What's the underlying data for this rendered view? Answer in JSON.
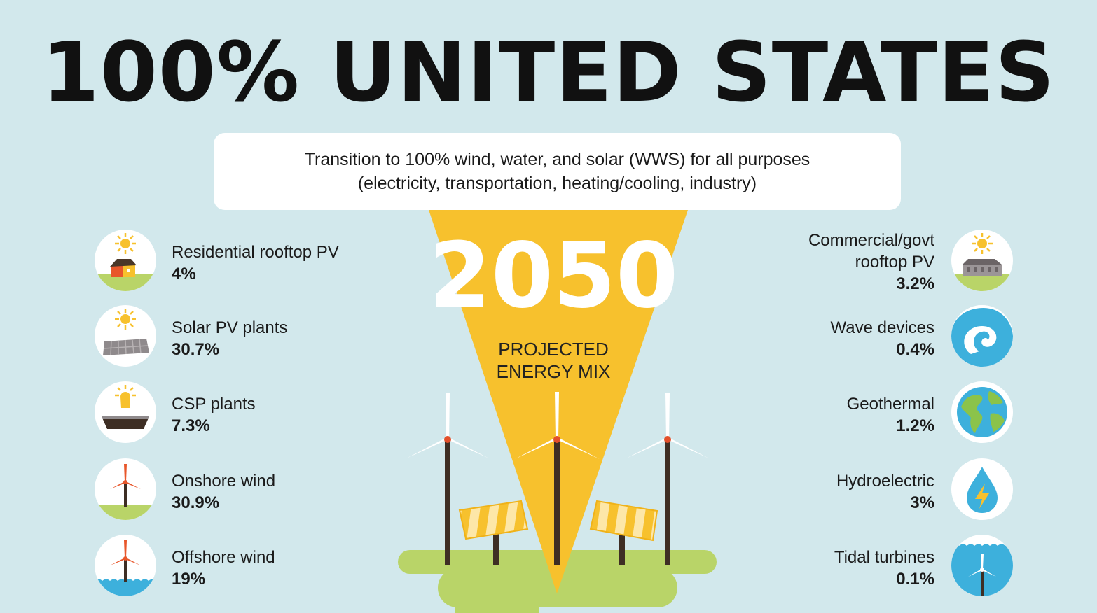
{
  "title": "100% UNITED STATES",
  "banner": {
    "line1": "Transition to 100% wind, water, and solar (WWS) for all purposes",
    "line2": "(electricity, transportation, heating/cooling, industry)"
  },
  "center": {
    "year": "2050",
    "label_line1": "PROJECTED",
    "label_line2": "ENERGY MIX"
  },
  "colors": {
    "background": "#d2e8ec",
    "funnel": "#f7c12d",
    "grass": "#b9d468",
    "water": "#3db0dc",
    "turbine_hub": "#e3502b",
    "tower": "#3e2e24"
  },
  "left_items": [
    {
      "label": "Residential rooftop PV",
      "value": "4%",
      "icon": "sun-house-icon"
    },
    {
      "label": "Solar PV plants",
      "value": "30.7%",
      "icon": "sun-solar-panel-icon"
    },
    {
      "label": "CSP plants",
      "value": "7.3%",
      "icon": "csp-mirror-icon"
    },
    {
      "label": "Onshore wind",
      "value": "30.9%",
      "icon": "onshore-turbine-icon"
    },
    {
      "label": "Offshore wind",
      "value": "19%",
      "icon": "offshore-turbine-icon"
    }
  ],
  "right_items": [
    {
      "label": "Commercial/govt",
      "label2": "rooftop PV",
      "value": "3.2%",
      "icon": "sun-building-icon"
    },
    {
      "label": "Wave devices",
      "value": "0.4%",
      "icon": "wave-icon"
    },
    {
      "label": "Geothermal",
      "value": "1.2%",
      "icon": "globe-icon"
    },
    {
      "label": "Hydroelectric",
      "value": "3%",
      "icon": "water-drop-bolt-icon"
    },
    {
      "label": "Tidal turbines",
      "value": "0.1%",
      "icon": "tidal-turbine-icon"
    }
  ]
}
